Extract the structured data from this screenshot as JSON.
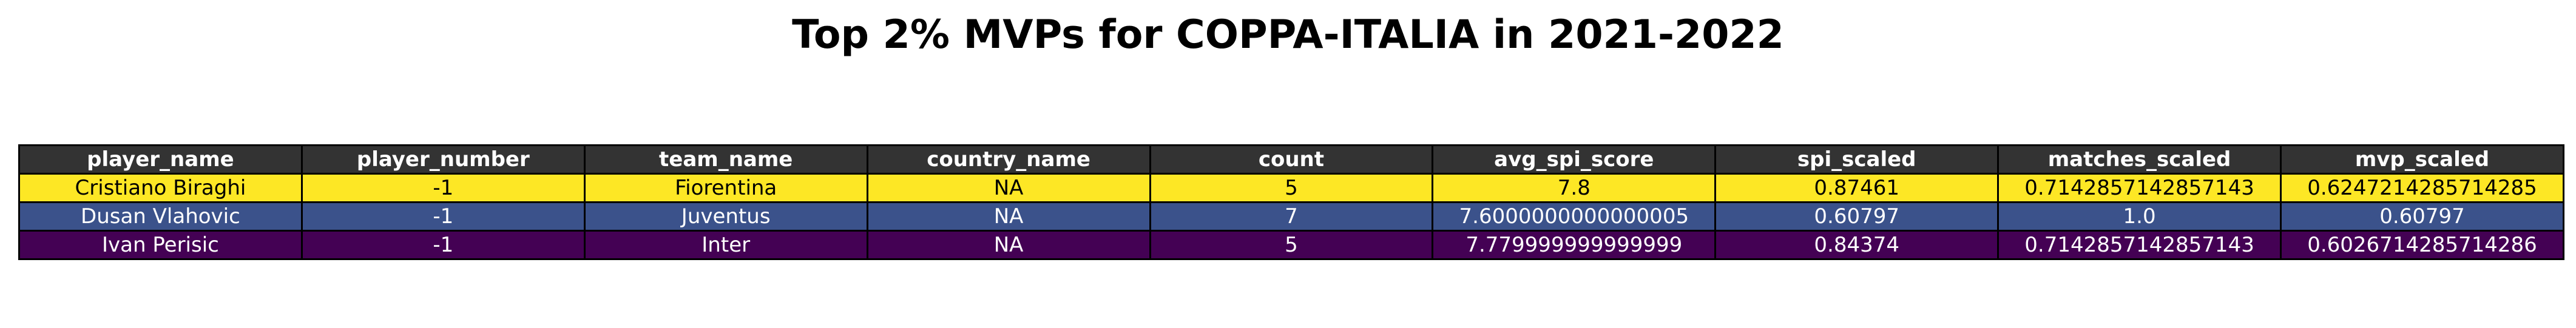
{
  "chart_data": {
    "type": "table",
    "title": "Top 2% MVPs for COPPA-ITALIA in 2021-2022",
    "columns": [
      "player_name",
      "player_number",
      "team_name",
      "country_name",
      "count",
      "avg_spi_score",
      "spi_scaled",
      "matches_scaled",
      "mvp_scaled"
    ],
    "header_color": "#333333",
    "header_text_color": "#ffffff",
    "rows": [
      {
        "cells": [
          "Cristiano Biraghi",
          "-1",
          "Fiorentina",
          "NA",
          "5",
          "7.8",
          "0.87461",
          "0.7142857142857143",
          "0.6247214285714285"
        ],
        "bg": "#fde725",
        "fg": "#000000"
      },
      {
        "cells": [
          "Dusan Vlahovic",
          "-1",
          "Juventus",
          "NA",
          "7",
          "7.6000000000000005",
          "0.60797",
          "1.0",
          "0.60797"
        ],
        "bg": "#3b528b",
        "fg": "#ffffff"
      },
      {
        "cells": [
          "Ivan Perisic",
          "-1",
          "Inter",
          "NA",
          "5",
          "7.779999999999999",
          "0.84374",
          "0.7142857142857143",
          "0.6026714285714286"
        ],
        "bg": "#440154",
        "fg": "#ffffff"
      }
    ]
  }
}
